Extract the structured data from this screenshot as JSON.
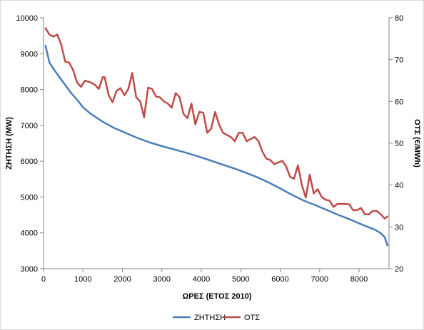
{
  "chart_data": {
    "type": "line",
    "xlabel": "ΩΡΕΣ (ΕΤΟΣ 2010)",
    "ylabel": "ΖΗΤΗΣΗ (MW)",
    "y2label": "ΟΤΣ (€/MWh)",
    "xlim": [
      0,
      8760
    ],
    "ylim": [
      3000,
      10000
    ],
    "y2lim": [
      20,
      80
    ],
    "xticks": [
      "0",
      "1000",
      "2000",
      "3000",
      "4000",
      "5000",
      "6000",
      "7000",
      "8000"
    ],
    "yticks": [
      "3000",
      "4000",
      "5000",
      "6000",
      "7000",
      "8000",
      "9000",
      "10000"
    ],
    "y2ticks": [
      "20",
      "30",
      "40",
      "50",
      "60",
      "70",
      "80"
    ],
    "grid": false,
    "legend": "bottom",
    "series": [
      {
        "name": "ΖΗΤΗΣΗ",
        "axis": "left",
        "color": "#4a7ebb",
        "x": [
          50,
          150,
          300,
          500,
          700,
          900,
          1000,
          1200,
          1500,
          1800,
          2100,
          2400,
          2700,
          3000,
          3300,
          3600,
          3900,
          4200,
          4500,
          4800,
          5100,
          5400,
          5700,
          6000,
          6300,
          6600,
          6900,
          7200,
          7500,
          7800,
          8100,
          8400,
          8550,
          8650,
          8720
        ],
        "values": [
          9220,
          8750,
          8500,
          8200,
          7900,
          7650,
          7500,
          7320,
          7100,
          6920,
          6780,
          6640,
          6520,
          6420,
          6330,
          6240,
          6140,
          6030,
          5920,
          5810,
          5690,
          5560,
          5410,
          5240,
          5060,
          4900,
          4770,
          4630,
          4490,
          4360,
          4220,
          4090,
          3990,
          3880,
          3650
        ]
      },
      {
        "name": "ΟΤΣ",
        "axis": "right",
        "color": "#be4b48",
        "x": [
          50,
          150,
          250,
          350,
          450,
          550,
          650,
          750,
          850,
          950,
          1050,
          1200,
          1300,
          1400,
          1500,
          1550,
          1650,
          1750,
          1850,
          1950,
          2050,
          2150,
          2250,
          2350,
          2450,
          2550,
          2650,
          2750,
          2850,
          2950,
          3050,
          3150,
          3250,
          3350,
          3450,
          3550,
          3650,
          3750,
          3850,
          3950,
          4050,
          4150,
          4250,
          4350,
          4450,
          4550,
          4650,
          4750,
          4850,
          4950,
          5050,
          5150,
          5250,
          5350,
          5450,
          5550,
          5650,
          5750,
          5850,
          5950,
          6050,
          6150,
          6250,
          6350,
          6450,
          6550,
          6650,
          6750,
          6850,
          6950,
          7050,
          7150,
          7250,
          7350,
          7450,
          7550,
          7650,
          7750,
          7850,
          7950,
          8050,
          8150,
          8250,
          8350,
          8450,
          8550,
          8650,
          8720
        ],
        "values": [
          77.5,
          76,
          75.5,
          76,
          73.5,
          69.5,
          69.3,
          67.5,
          64.5,
          63.5,
          65,
          64.5,
          64,
          63,
          65.8,
          65.8,
          61.5,
          59.8,
          62.5,
          63.2,
          61.5,
          63,
          66.8,
          61,
          60,
          56.2,
          63.3,
          63,
          61.2,
          61,
          60,
          59.5,
          58.5,
          62,
          61,
          57,
          56,
          59.5,
          54.5,
          57.5,
          57.3,
          52.5,
          53.5,
          57.5,
          54.5,
          52.5,
          52,
          51.5,
          50.5,
          52.5,
          52.5,
          50.5,
          51,
          51.5,
          50.5,
          48,
          46.3,
          46,
          45,
          45.4,
          45.8,
          44.5,
          42,
          41.5,
          44.7,
          40,
          37,
          42.5,
          38,
          39,
          37.2,
          36.5,
          36.3,
          34.8,
          35.5,
          35.5,
          35.5,
          35.4,
          34,
          34,
          34.5,
          33,
          33,
          33.8,
          33.8,
          33,
          32,
          32.5
        ]
      }
    ]
  }
}
